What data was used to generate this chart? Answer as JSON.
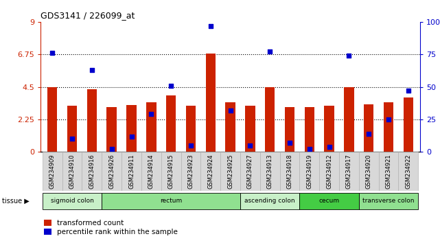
{
  "title": "GDS3141 / 226099_at",
  "samples": [
    "GSM234909",
    "GSM234910",
    "GSM234916",
    "GSM234926",
    "GSM234911",
    "GSM234914",
    "GSM234915",
    "GSM234923",
    "GSM234924",
    "GSM234925",
    "GSM234927",
    "GSM234913",
    "GSM234918",
    "GSM234919",
    "GSM234912",
    "GSM234917",
    "GSM234920",
    "GSM234921",
    "GSM234922"
  ],
  "red_values": [
    4.5,
    3.2,
    4.35,
    3.1,
    3.25,
    3.45,
    3.9,
    3.2,
    6.8,
    3.45,
    3.2,
    4.5,
    3.1,
    3.1,
    3.2,
    4.5,
    3.3,
    3.45,
    3.75
  ],
  "blue_values": [
    76,
    10,
    63,
    2,
    12,
    29,
    51,
    5,
    97,
    32,
    5,
    77,
    7,
    2,
    4,
    74,
    14,
    25,
    47
  ],
  "ylim_left": [
    0,
    9
  ],
  "ylim_right": [
    0,
    100
  ],
  "yticks_left": [
    0,
    2.25,
    4.5,
    6.75,
    9
  ],
  "ytick_labels_left": [
    "0",
    "2.25",
    "4.5",
    "6.75",
    "9"
  ],
  "ytick_labels_right": [
    "0",
    "25",
    "50",
    "75",
    "100%"
  ],
  "hlines": [
    2.25,
    4.5,
    6.75
  ],
  "tissue_groups": [
    {
      "label": "sigmoid colon",
      "start": 0,
      "end": 3,
      "color": "#c8f0c8"
    },
    {
      "label": "rectum",
      "start": 3,
      "end": 10,
      "color": "#90e090"
    },
    {
      "label": "ascending colon",
      "start": 10,
      "end": 13,
      "color": "#c8f0c8"
    },
    {
      "label": "cecum",
      "start": 13,
      "end": 16,
      "color": "#44cc44"
    },
    {
      "label": "transverse colon",
      "start": 16,
      "end": 19,
      "color": "#90e090"
    }
  ],
  "bar_color": "#cc2200",
  "dot_color": "#0000cc",
  "bar_width": 0.5,
  "tick_bg_color": "#d8d8d8",
  "tick_border_color": "#aaaaaa",
  "legend_red": "transformed count",
  "legend_blue": "percentile rank within the sample",
  "tissue_label": "tissue"
}
